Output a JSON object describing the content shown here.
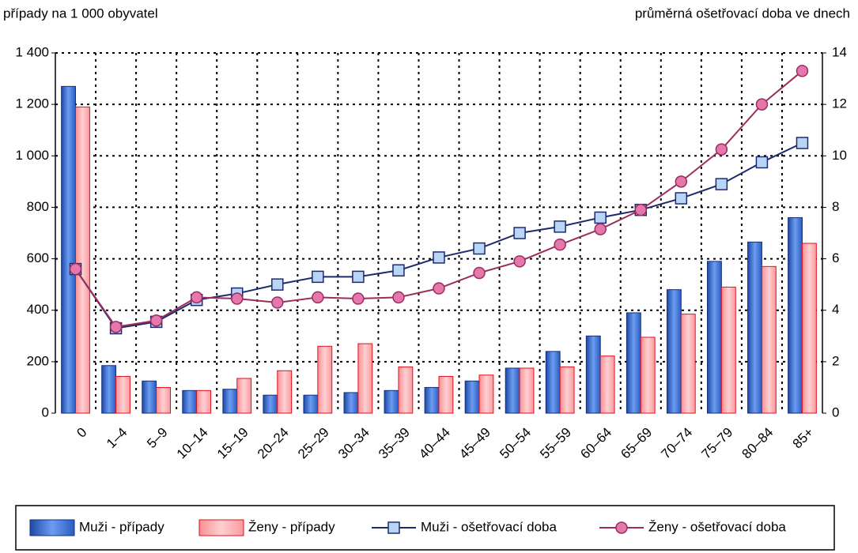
{
  "chart_data": {
    "type": "bar",
    "y_axis_label": "případy na 1 000 obyvatel",
    "y2_axis_label": "průměrná ošetřovací doba ve dnech",
    "categories": [
      "0",
      "1–4",
      "5–9",
      "10–14",
      "15–19",
      "20–24",
      "25–29",
      "30–34",
      "35–39",
      "40–44",
      "45–49",
      "50–54",
      "55–59",
      "60–64",
      "65–69",
      "70–74",
      "75–79",
      "80–84",
      "85+"
    ],
    "ylim": [
      0,
      1400
    ],
    "yticks": [
      0,
      200,
      400,
      600,
      800,
      {
        "value": 1000,
        "label": "1 000"
      },
      {
        "value": 1200,
        "label": "1 200"
      },
      {
        "value": 1400,
        "label": "1 400"
      }
    ],
    "y2lim": [
      0,
      14
    ],
    "y2ticks": [
      0,
      2,
      4,
      6,
      8,
      10,
      12,
      14
    ],
    "grid": true,
    "legend": "bottom",
    "series": [
      {
        "name": "Muži - případy",
        "type": "bar",
        "color": "#2f62c8",
        "edge": "#12307a",
        "values": [
          1270,
          185,
          125,
          88,
          93,
          70,
          70,
          80,
          88,
          100,
          125,
          175,
          240,
          300,
          390,
          480,
          590,
          665,
          760
        ]
      },
      {
        "name": "Ženy - případy",
        "type": "bar",
        "color": "#fba3a6",
        "edge": "#e0101e",
        "values": [
          1190,
          143,
          100,
          88,
          135,
          165,
          260,
          270,
          180,
          143,
          148,
          175,
          180,
          222,
          295,
          385,
          490,
          570,
          660
        ]
      },
      {
        "name": "Muži - ošetřovací doba",
        "type": "line",
        "axis": "y2",
        "marker": "square",
        "color": "#1d2a6e",
        "marker_color": "#b9d5f5",
        "values": [
          5.6,
          3.3,
          3.55,
          4.4,
          4.65,
          5.0,
          5.3,
          5.3,
          5.55,
          6.05,
          6.4,
          7.0,
          7.25,
          7.6,
          7.9,
          8.35,
          8.9,
          9.75,
          10.5
        ]
      },
      {
        "name": "Ženy - ošetřovací doba",
        "type": "line",
        "axis": "y2",
        "marker": "circle",
        "color": "#9c2d5c",
        "marker_color": "#e478ad",
        "values": [
          5.6,
          3.35,
          3.6,
          4.5,
          4.45,
          4.3,
          4.5,
          4.45,
          4.5,
          4.85,
          5.45,
          5.9,
          6.55,
          7.15,
          7.9,
          9.0,
          10.25,
          12.0,
          13.3
        ]
      }
    ]
  }
}
